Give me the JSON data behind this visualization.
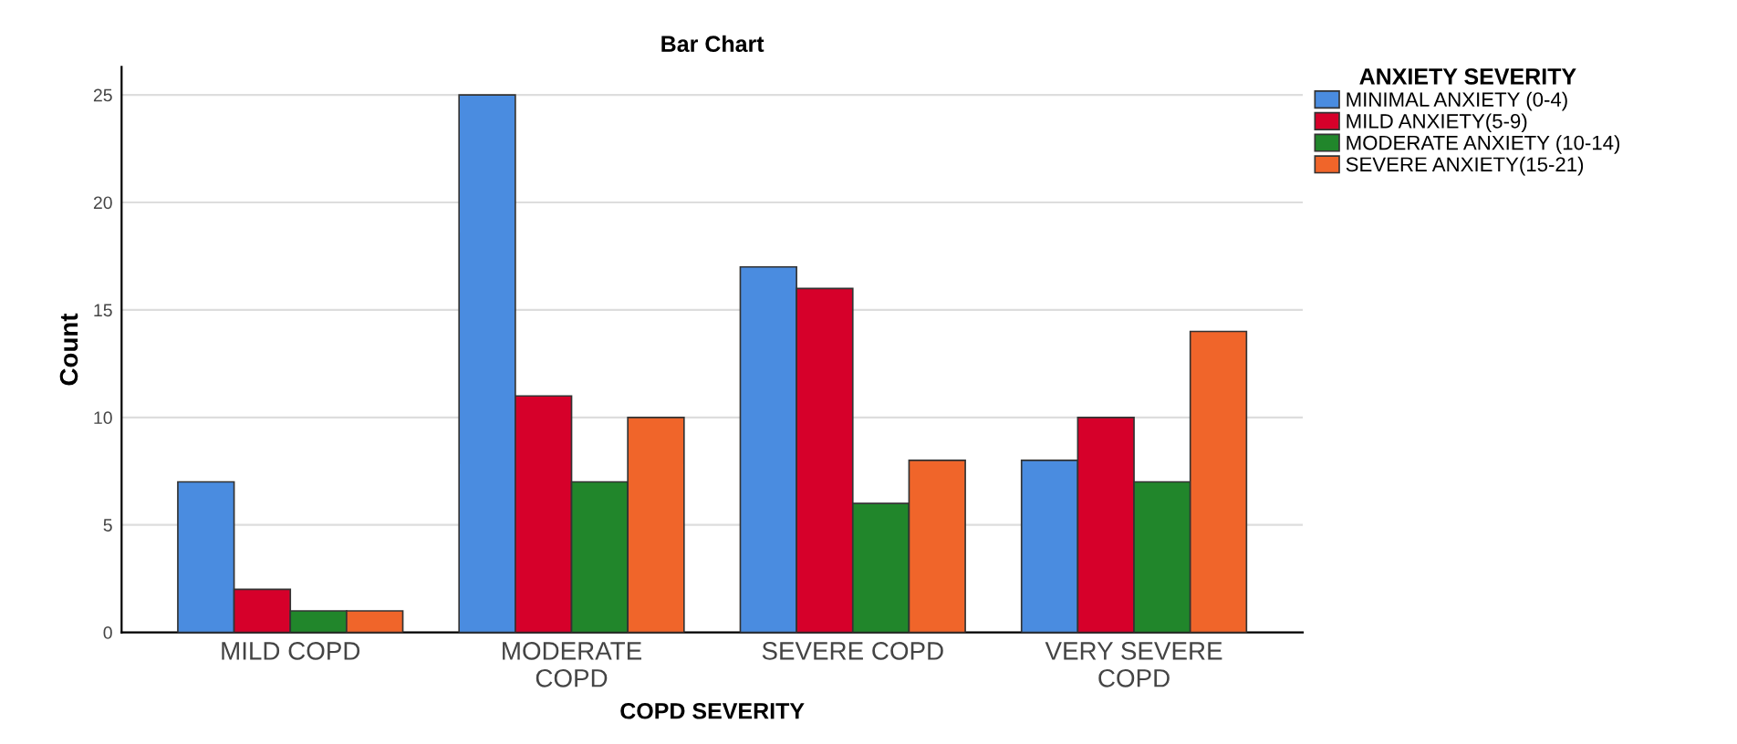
{
  "chart_data": {
    "type": "bar",
    "title": "Bar Chart",
    "xlabel": "COPD SEVERITY",
    "ylabel": "Count",
    "legend_title": "ANXIETY SEVERITY",
    "categories": [
      "MILD COPD",
      "MODERATE\nCOPD",
      "SEVERE COPD",
      "VERY SEVERE\nCOPD"
    ],
    "series": [
      {
        "name": "MINIMAL ANXIETY (0-4)",
        "color": "#4a8ce0",
        "values": [
          7,
          25,
          17,
          8
        ]
      },
      {
        "name": "MILD ANXIETY(5-9)",
        "color": "#d6002a",
        "values": [
          2,
          11,
          16,
          10
        ]
      },
      {
        "name": "MODERATE ANXIETY (10-14)",
        "color": "#21862b",
        "values": [
          1,
          7,
          6,
          7
        ]
      },
      {
        "name": "SEVERE ANXIETY(15-21)",
        "color": "#f0652a",
        "values": [
          1,
          10,
          8,
          14
        ]
      }
    ],
    "ylim": [
      0,
      26.3
    ],
    "yticks": [
      0,
      5,
      10,
      15,
      20,
      25
    ],
    "grid": "y",
    "legend": "top right"
  }
}
